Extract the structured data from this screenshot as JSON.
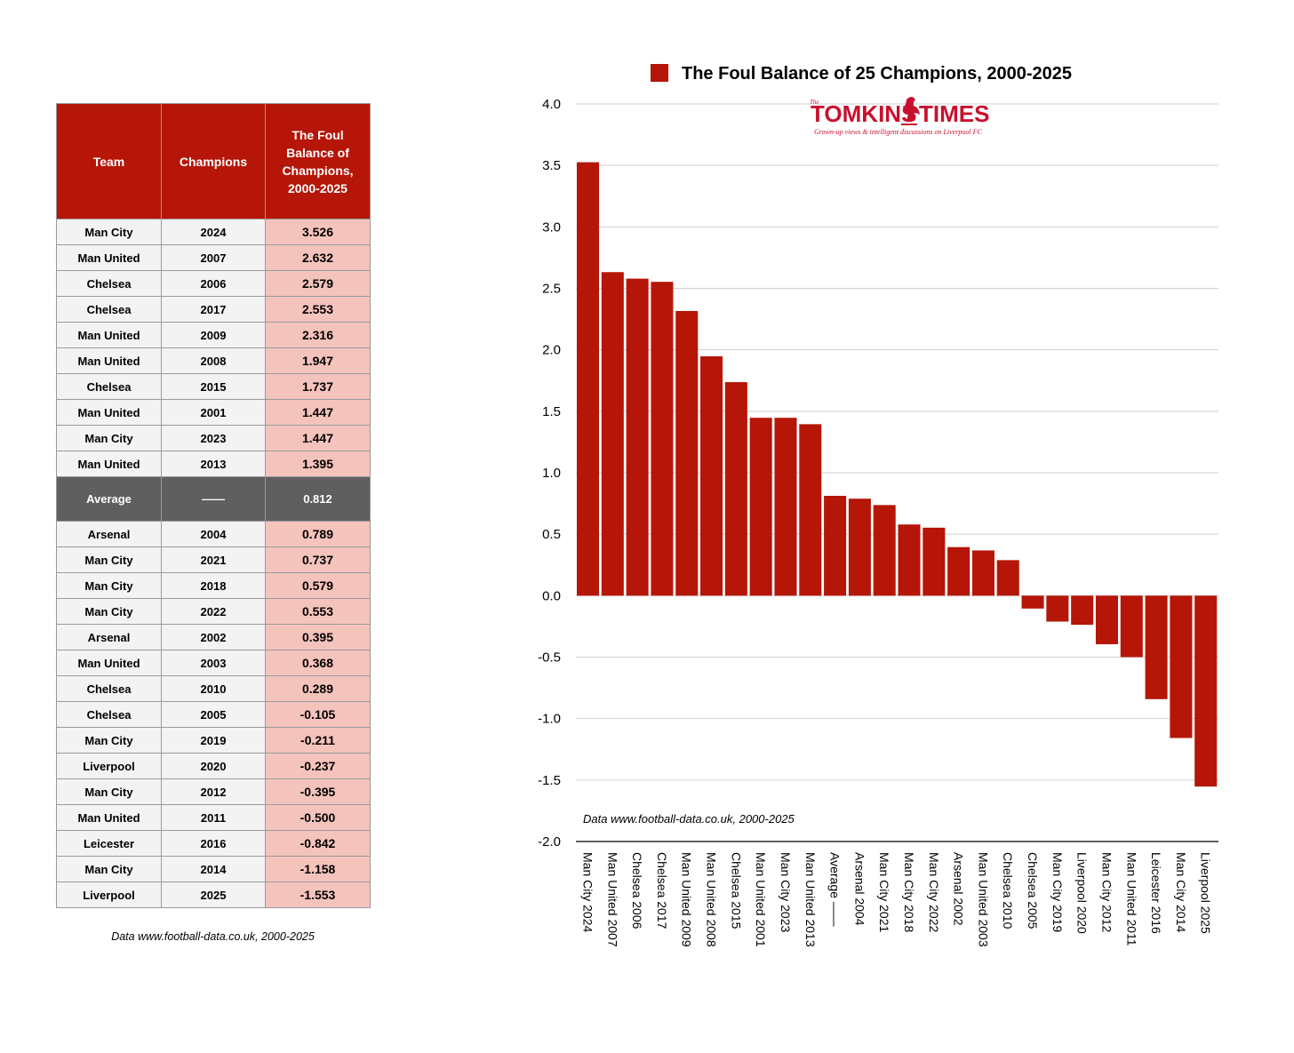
{
  "table": {
    "headers": [
      "Team",
      "Champions",
      "The Foul Balance of Champions, 2000-2025"
    ],
    "rows_top": [
      {
        "team": "Man City",
        "year": "2024",
        "value": "3.526"
      },
      {
        "team": "Man United",
        "year": "2007",
        "value": "2.632"
      },
      {
        "team": "Chelsea",
        "year": "2006",
        "value": "2.579"
      },
      {
        "team": "Chelsea",
        "year": "2017",
        "value": "2.553"
      },
      {
        "team": "Man United",
        "year": "2009",
        "value": "2.316"
      },
      {
        "team": "Man United",
        "year": "2008",
        "value": "1.947"
      },
      {
        "team": "Chelsea",
        "year": "2015",
        "value": "1.737"
      },
      {
        "team": "Man United",
        "year": "2001",
        "value": "1.447"
      },
      {
        "team": "Man City",
        "year": "2023",
        "value": "1.447"
      },
      {
        "team": "Man United",
        "year": "2013",
        "value": "1.395"
      }
    ],
    "average_row": {
      "team": "Average",
      "year": "——",
      "value": "0.812"
    },
    "rows_bottom": [
      {
        "team": "Arsenal",
        "year": "2004",
        "value": "0.789"
      },
      {
        "team": "Man City",
        "year": "2021",
        "value": "0.737"
      },
      {
        "team": "Man City",
        "year": "2018",
        "value": "0.579"
      },
      {
        "team": "Man City",
        "year": "2022",
        "value": "0.553"
      },
      {
        "team": "Arsenal",
        "year": "2002",
        "value": "0.395"
      },
      {
        "team": "Man United",
        "year": "2003",
        "value": "0.368"
      },
      {
        "team": "Chelsea",
        "year": "2010",
        "value": "0.289"
      },
      {
        "team": "Chelsea",
        "year": "2005",
        "value": "-0.105"
      },
      {
        "team": "Man City",
        "year": "2019",
        "value": "-0.211"
      },
      {
        "team": "Liverpool",
        "year": "2020",
        "value": "-0.237"
      },
      {
        "team": "Man City",
        "year": "2012",
        "value": "-0.395"
      },
      {
        "team": "Man United",
        "year": "2011",
        "value": "-0.500"
      },
      {
        "team": "Leicester",
        "year": "2016",
        "value": "-0.842"
      },
      {
        "team": "Man City",
        "year": "2014",
        "value": "-1.158"
      },
      {
        "team": "Liverpool",
        "year": "2025",
        "value": "-1.553"
      }
    ],
    "source": "Data www.football-data.co.uk, 2000-2025"
  },
  "logo": {
    "the": "The",
    "name_left": "TOMKINS",
    "name_right": "TIMES",
    "tagline": "Grown-up views & intelligent discussions on Liverpool FC"
  },
  "colors": {
    "bar": "#b51607",
    "header": "#b51607",
    "value_cell": "#f4c3bb",
    "average_row": "#5f5f5f",
    "grid": "#cfcfcf"
  },
  "chart_data": {
    "type": "bar",
    "title": "The Foul Balance of 25 Champions, 2000-2025",
    "legend": [
      "The Foul Balance of 25 Champions, 2000-2025"
    ],
    "legend_position": "top",
    "categories": [
      "Man City 2024",
      "Man United 2007",
      "Chelsea 2006",
      "Chelsea 2017",
      "Man United 2009",
      "Man United 2008",
      "Chelsea 2015",
      "Man United 2001",
      "Man City 2023",
      "Man United 2013",
      "Average ——",
      "Arsenal 2004",
      "Man City 2021",
      "Man City 2018",
      "Man City 2022",
      "Arsenal 2002",
      "Man United 2003",
      "Chelsea 2010",
      "Chelsea 2005",
      "Man City 2019",
      "Liverpool 2020",
      "Man City 2012",
      "Man United 2011",
      "Leicester 2016",
      "Man City 2014",
      "Liverpool 2025"
    ],
    "values": [
      3.526,
      2.632,
      2.579,
      2.553,
      2.316,
      1.947,
      1.737,
      1.447,
      1.447,
      1.395,
      0.812,
      0.789,
      0.737,
      0.579,
      0.553,
      0.395,
      0.368,
      0.289,
      -0.105,
      -0.211,
      -0.237,
      -0.395,
      -0.5,
      -0.842,
      -1.158,
      -1.553
    ],
    "yticks": [
      "4.0",
      "3.5",
      "3.0",
      "2.5",
      "2.0",
      "1.5",
      "1.0",
      "0.5",
      "0.0",
      "-0.5",
      "-1.0",
      "-1.5",
      "-2.0"
    ],
    "ylim": [
      -2.0,
      4.0
    ],
    "grid": true,
    "xlabel": "",
    "ylabel": "",
    "annotation": "Data www.football-data.co.uk, 2000-2025"
  }
}
